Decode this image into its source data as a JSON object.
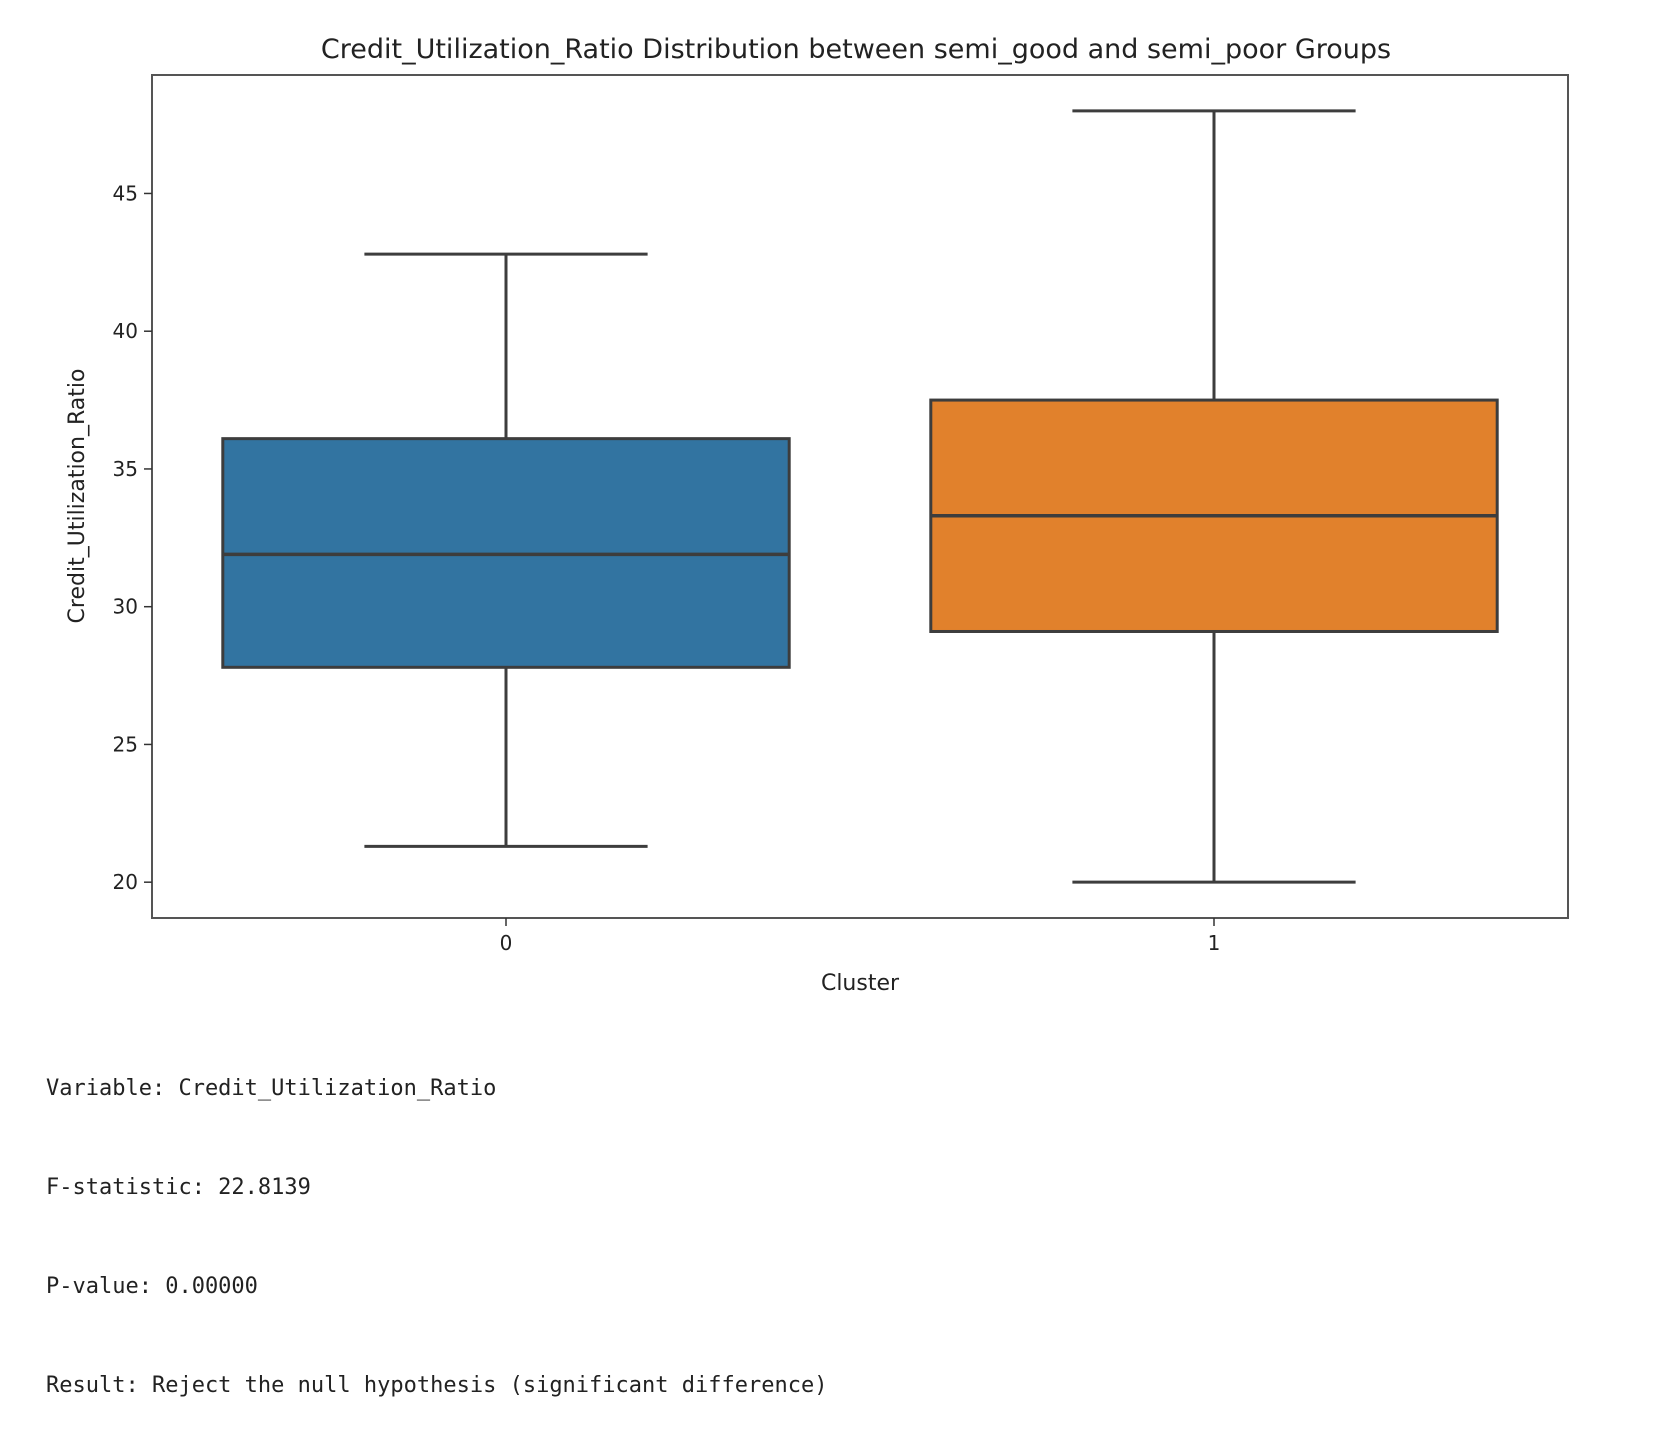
{
  "chart_data": {
    "type": "box",
    "title": "Credit_Utilization_Ratio Distribution between semi_good and semi_poor Groups",
    "xlabel": "Cluster",
    "ylabel": "Credit_Utilization_Ratio",
    "categories": [
      "0",
      "1"
    ],
    "ylim": [
      18.7,
      49.3
    ],
    "yticks": [
      20,
      25,
      30,
      35,
      40,
      45
    ],
    "grid": false,
    "boxes": [
      {
        "category": "0",
        "whisker_low": 21.3,
        "q1": 27.8,
        "median": 31.9,
        "q3": 36.1,
        "whisker_high": 42.8,
        "color": "#3274a1"
      },
      {
        "category": "1",
        "whisker_low": 20.0,
        "q1": 29.1,
        "median": 33.3,
        "q3": 37.5,
        "whisker_high": 48.0,
        "color": "#e1812c"
      }
    ]
  },
  "stats": {
    "variable": "Variable: Credit_Utilization_Ratio",
    "f_statistic": "F-statistic: 22.8139",
    "p_value": "P-value: 0.00000",
    "result": "Result: Reject the null hypothesis (significant difference)"
  },
  "colors": {
    "edge": "#3d3d3d",
    "frame": "#555555"
  }
}
